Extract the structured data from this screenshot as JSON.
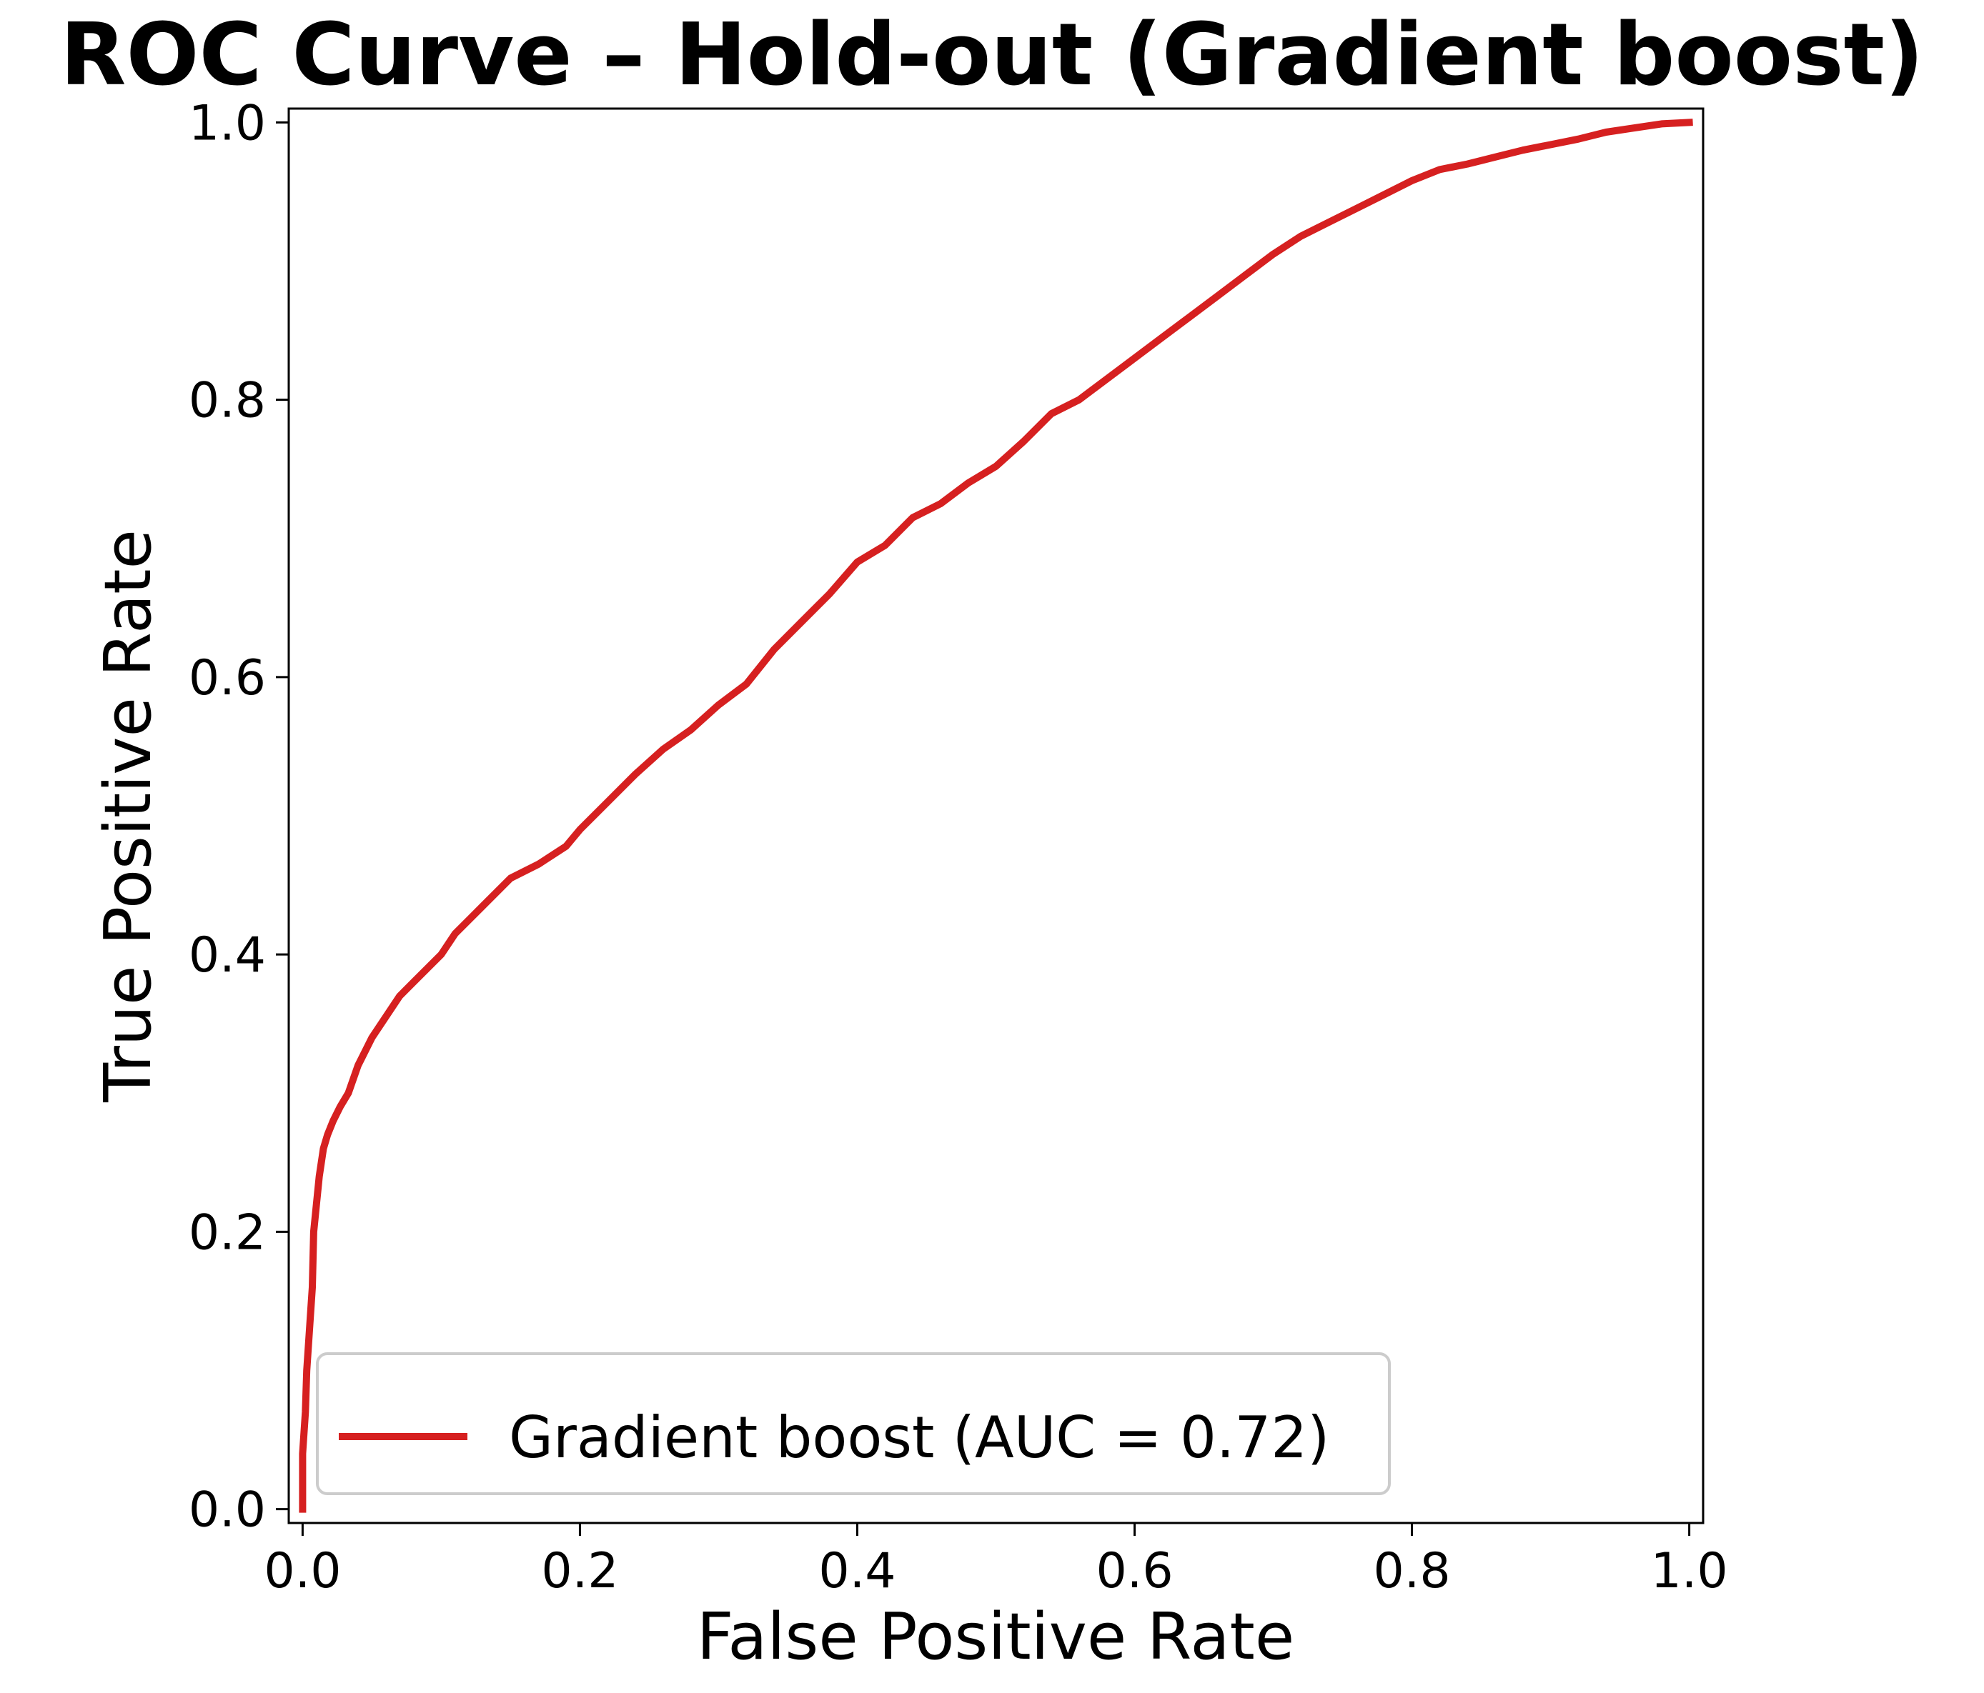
{
  "chart_data": {
    "type": "line",
    "title": "ROC Curve – Hold-out (Gradient boost)",
    "xlabel": "False Positive Rate",
    "ylabel": "True Positive Rate",
    "xlim": [
      -0.01,
      1.01
    ],
    "ylim": [
      -0.01,
      1.01
    ],
    "xticks": [
      0.0,
      0.2,
      0.4,
      0.6,
      0.8,
      1.0
    ],
    "yticks": [
      0.0,
      0.2,
      0.4,
      0.6,
      0.8,
      1.0
    ],
    "xtick_labels": [
      "0.0",
      "0.2",
      "0.4",
      "0.6",
      "0.8",
      "1.0"
    ],
    "ytick_labels": [
      "0.0",
      "0.2",
      "0.4",
      "0.6",
      "0.8",
      "1.0"
    ],
    "grid": false,
    "legend_position": "lower-left",
    "series": [
      {
        "name": "Gradient boost (AUC = 0.72)",
        "color": "#d62020",
        "x": [
          0.0,
          0.0,
          0.002,
          0.003,
          0.005,
          0.007,
          0.008,
          0.01,
          0.012,
          0.015,
          0.018,
          0.022,
          0.027,
          0.033,
          0.04,
          0.05,
          0.06,
          0.07,
          0.08,
          0.09,
          0.1,
          0.11,
          0.12,
          0.13,
          0.15,
          0.17,
          0.19,
          0.2,
          0.22,
          0.24,
          0.26,
          0.28,
          0.3,
          0.32,
          0.34,
          0.36,
          0.38,
          0.4,
          0.42,
          0.44,
          0.46,
          0.48,
          0.5,
          0.52,
          0.54,
          0.56,
          0.58,
          0.6,
          0.62,
          0.64,
          0.66,
          0.68,
          0.7,
          0.72,
          0.74,
          0.76,
          0.78,
          0.8,
          0.82,
          0.84,
          0.86,
          0.88,
          0.9,
          0.92,
          0.94,
          0.96,
          0.98,
          1.0
        ],
        "y": [
          0.0,
          0.04,
          0.07,
          0.1,
          0.13,
          0.16,
          0.2,
          0.22,
          0.24,
          0.26,
          0.27,
          0.28,
          0.29,
          0.3,
          0.32,
          0.34,
          0.355,
          0.37,
          0.38,
          0.39,
          0.4,
          0.415,
          0.425,
          0.435,
          0.455,
          0.465,
          0.478,
          0.49,
          0.51,
          0.53,
          0.548,
          0.562,
          0.58,
          0.595,
          0.62,
          0.64,
          0.66,
          0.683,
          0.695,
          0.715,
          0.725,
          0.74,
          0.752,
          0.77,
          0.79,
          0.8,
          0.815,
          0.83,
          0.845,
          0.86,
          0.875,
          0.89,
          0.905,
          0.918,
          0.928,
          0.938,
          0.948,
          0.958,
          0.966,
          0.97,
          0.975,
          0.98,
          0.984,
          0.988,
          0.993,
          0.996,
          0.999,
          1.0
        ]
      }
    ]
  }
}
